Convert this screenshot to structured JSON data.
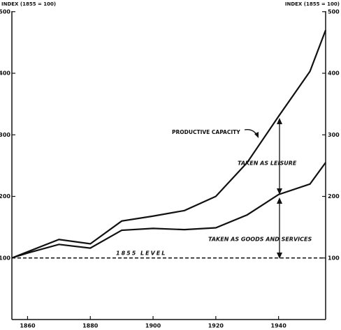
{
  "chart_data": {
    "type": "line",
    "y_label": "INDEX (1855 = 100)",
    "y2_label": "INDEX (1855 = 100)",
    "xlim": [
      1855,
      1955
    ],
    "xticks": [
      1860,
      1880,
      1900,
      1920,
      1940
    ],
    "ylim": [
      0,
      500
    ],
    "yticks": [
      100,
      200,
      300,
      400,
      500
    ],
    "series": [
      {
        "name": "PRODUCTIVE CAPACITY",
        "color": "#111111",
        "style": "solid",
        "x": [
          1855,
          1860,
          1870,
          1880,
          1890,
          1900,
          1910,
          1920,
          1930,
          1940,
          1950,
          1955
        ],
        "values": [
          100,
          110,
          130,
          123,
          160,
          168,
          177,
          200,
          255,
          330,
          403,
          470
        ]
      },
      {
        "name": "TAKEN AS GOODS AND SERVICES",
        "color": "#111111",
        "style": "solid",
        "x": [
          1855,
          1860,
          1870,
          1880,
          1890,
          1900,
          1910,
          1920,
          1930,
          1940,
          1950,
          1955
        ],
        "values": [
          100,
          108,
          122,
          116,
          145,
          148,
          146,
          149,
          170,
          203,
          220,
          255
        ]
      },
      {
        "name": "1855 LEVEL",
        "color": "#111111",
        "style": "dashed",
        "x": [
          1855,
          1955
        ],
        "values": [
          100,
          100
        ]
      }
    ],
    "annotations": [
      "TAKEN AS LEISURE"
    ]
  }
}
